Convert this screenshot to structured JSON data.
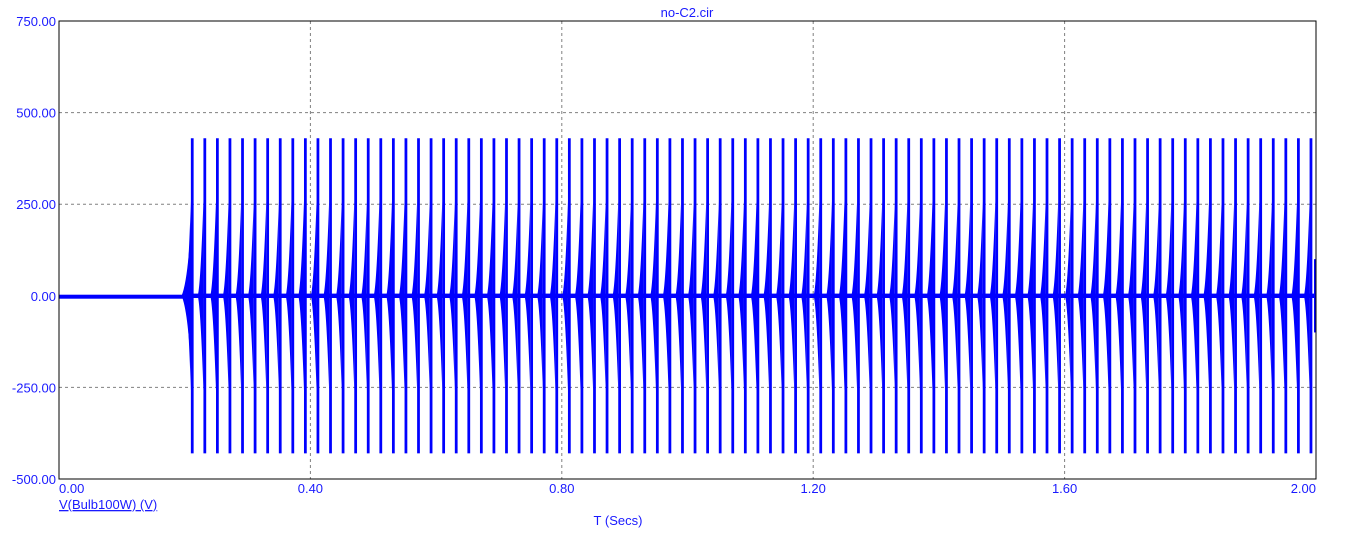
{
  "chart_data": {
    "type": "line",
    "title": "no-C2.cir",
    "xlabel": "T (Secs)",
    "series_label": "V(Bulb100W) (V)",
    "xlim": [
      0,
      2
    ],
    "ylim": [
      -500,
      750
    ],
    "x_ticks": [
      "0.00",
      "0.40",
      "0.80",
      "1.20",
      "1.60",
      "2.00"
    ],
    "x_tick_values": [
      0,
      0.4,
      0.8,
      1.2,
      1.6,
      2.0
    ],
    "y_ticks": [
      "750.00",
      "500.00",
      "250.00",
      "0.00",
      "-250.00",
      "-500.00"
    ],
    "y_tick_values": [
      750,
      500,
      250,
      0,
      -250,
      -500
    ],
    "grid": true,
    "series": [
      {
        "name": "V(Bulb100W) (V)",
        "color": "#0000ff",
        "segments": [
          {
            "t_start": 0.0,
            "t_end": 0.2,
            "v_min": -3,
            "v_max": 3,
            "desc": "flat near 0 V"
          },
          {
            "t_start": 0.2,
            "t_end": 2.0,
            "v_min": -430,
            "v_max": 430,
            "pulse_period_s": 0.02
          }
        ]
      }
    ]
  },
  "colors": {
    "axis": "#000000",
    "grid": "#808080",
    "text": "#1a1aff",
    "trace": "#0000ff"
  }
}
